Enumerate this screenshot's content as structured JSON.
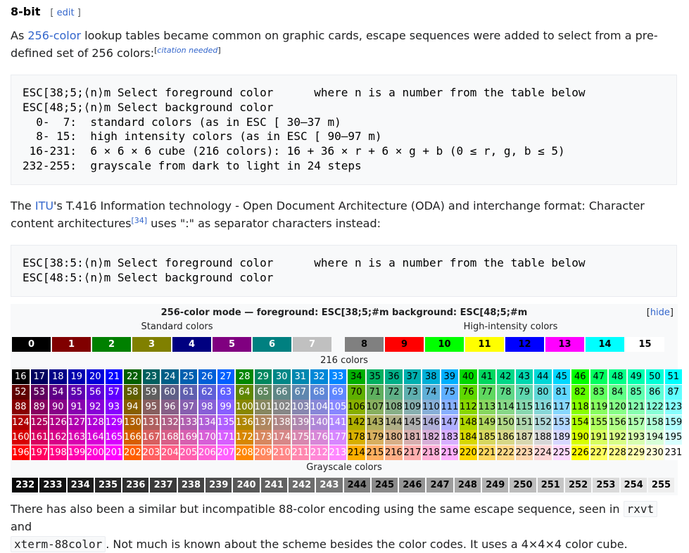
{
  "section": {
    "title": "8-bit",
    "edit_open": "[",
    "edit_label": "edit",
    "edit_close": "]"
  },
  "para1": {
    "before": "As ",
    "link": "256-color",
    "after": " lookup tables became common on graphic cards, escape sequences were added to select from a pre-defined set of 256 colors:",
    "citation": "citation needed"
  },
  "code1": "ESC[38;5;⟨n⟩m Select foreground color      where n is a number from the table below\nESC[48;5;⟨n⟩m Select background color\n  0-  7:  standard colors (as in ESC [ 30–37 m)\n  8- 15:  high intensity colors (as in ESC [ 90–97 m)\n 16-231:  6 × 6 × 6 cube (216 colors): 16 + 36 × r + 6 × g + b (0 ≤ r, g, b ≤ 5)\n232-255:  grayscale from dark to light in 24 steps",
  "para2": {
    "before": "The ",
    "link": "ITU",
    "after": "'s T.416 Information technology - Open Document Architecture (ODA) and interchange format: Character content architectures",
    "ref": "[34]",
    "after2": " uses \":\" as separator characters instead:"
  },
  "code2": "ESC[38:5:⟨n⟩m Select foreground color      where n is a number from the table below\nESC[48:5:⟨n⟩m Select background color",
  "table": {
    "title": "256-color mode — foreground: ESC[38;5;#m   background: ESC[48;5;#m",
    "hide_label": "hide",
    "standard_label": "Standard colors",
    "high_label": "High-intensity colors",
    "cube_label": "216 colors",
    "gray_label": "Grayscale colors",
    "standard": [
      {
        "n": "0",
        "bg": "#000000",
        "fg": "#ffffff"
      },
      {
        "n": "1",
        "bg": "#800000",
        "fg": "#ffffff"
      },
      {
        "n": "2",
        "bg": "#008000",
        "fg": "#ffffff"
      },
      {
        "n": "3",
        "bg": "#808000",
        "fg": "#ffffff"
      },
      {
        "n": "4",
        "bg": "#000080",
        "fg": "#ffffff"
      },
      {
        "n": "5",
        "bg": "#800080",
        "fg": "#ffffff"
      },
      {
        "n": "6",
        "bg": "#008080",
        "fg": "#ffffff"
      },
      {
        "n": "7",
        "bg": "#c0c0c0",
        "fg": "#ffffff"
      }
    ],
    "high": [
      {
        "n": "8",
        "bg": "#808080",
        "fg": "#000000"
      },
      {
        "n": "9",
        "bg": "#ff0000",
        "fg": "#000000"
      },
      {
        "n": "10",
        "bg": "#00ff00",
        "fg": "#000000"
      },
      {
        "n": "11",
        "bg": "#ffff00",
        "fg": "#000000"
      },
      {
        "n": "12",
        "bg": "#0000ff",
        "fg": "#000000"
      },
      {
        "n": "13",
        "bg": "#ff00ff",
        "fg": "#000000"
      },
      {
        "n": "14",
        "bg": "#00ffff",
        "fg": "#000000"
      },
      {
        "n": "15",
        "bg": "#ffffff",
        "fg": "#000000"
      }
    ],
    "cube_rows": [
      [
        "16",
        "17",
        "18",
        "19",
        "20",
        "21",
        "22",
        "23",
        "24",
        "25",
        "26",
        "27",
        "28",
        "29",
        "30",
        "31",
        "32",
        "33",
        "34",
        "35",
        "36",
        "37",
        "38",
        "39",
        "40",
        "41",
        "42",
        "43",
        "44",
        "45",
        "46",
        "47",
        "48",
        "49",
        "50",
        "51"
      ],
      [
        "52",
        "53",
        "54",
        "55",
        "56",
        "57",
        "58",
        "59",
        "60",
        "61",
        "62",
        "63",
        "64",
        "65",
        "66",
        "67",
        "68",
        "69",
        "70",
        "71",
        "72",
        "73",
        "74",
        "75",
        "76",
        "77",
        "78",
        "79",
        "80",
        "81",
        "82",
        "83",
        "84",
        "85",
        "86",
        "87"
      ],
      [
        "88",
        "89",
        "90",
        "91",
        "92",
        "93",
        "94",
        "95",
        "96",
        "97",
        "98",
        "99",
        "100",
        "101",
        "102",
        "103",
        "104",
        "105",
        "106",
        "107",
        "108",
        "109",
        "110",
        "111",
        "112",
        "113",
        "114",
        "115",
        "116",
        "117",
        "118",
        "119",
        "120",
        "121",
        "122",
        "123"
      ],
      [
        "124",
        "125",
        "126",
        "127",
        "128",
        "129",
        "130",
        "131",
        "132",
        "133",
        "134",
        "135",
        "136",
        "137",
        "138",
        "139",
        "140",
        "141",
        "142",
        "143",
        "144",
        "145",
        "146",
        "147",
        "148",
        "149",
        "150",
        "151",
        "152",
        "153",
        "154",
        "155",
        "156",
        "157",
        "158",
        "159"
      ],
      [
        "160",
        "161",
        "162",
        "163",
        "164",
        "165",
        "166",
        "167",
        "168",
        "169",
        "170",
        "171",
        "172",
        "173",
        "174",
        "175",
        "176",
        "177",
        "178",
        "179",
        "180",
        "181",
        "182",
        "183",
        "184",
        "185",
        "186",
        "187",
        "188",
        "189",
        "190",
        "191",
        "192",
        "193",
        "194",
        "195"
      ],
      [
        "196",
        "197",
        "198",
        "199",
        "200",
        "201",
        "202",
        "203",
        "204",
        "205",
        "206",
        "207",
        "208",
        "209",
        "210",
        "211",
        "212",
        "213",
        "214",
        "215",
        "216",
        "217",
        "218",
        "219",
        "220",
        "221",
        "222",
        "223",
        "224",
        "225",
        "226",
        "227",
        "228",
        "229",
        "230",
        "231"
      ]
    ],
    "gray": [
      "232",
      "233",
      "234",
      "235",
      "236",
      "237",
      "238",
      "239",
      "240",
      "241",
      "242",
      "243",
      "244",
      "245",
      "246",
      "247",
      "248",
      "249",
      "250",
      "251",
      "252",
      "253",
      "254",
      "255"
    ]
  },
  "para3": {
    "before": "There has also been a similar but incompatible 88-color encoding using the same escape sequence, seen in ",
    "code_a": "rxvt",
    "mid": " and ",
    "code_b": "xterm-88color",
    "after": ". Not much is known about the scheme besides the color codes. It uses a 4×4×4 color cube."
  }
}
